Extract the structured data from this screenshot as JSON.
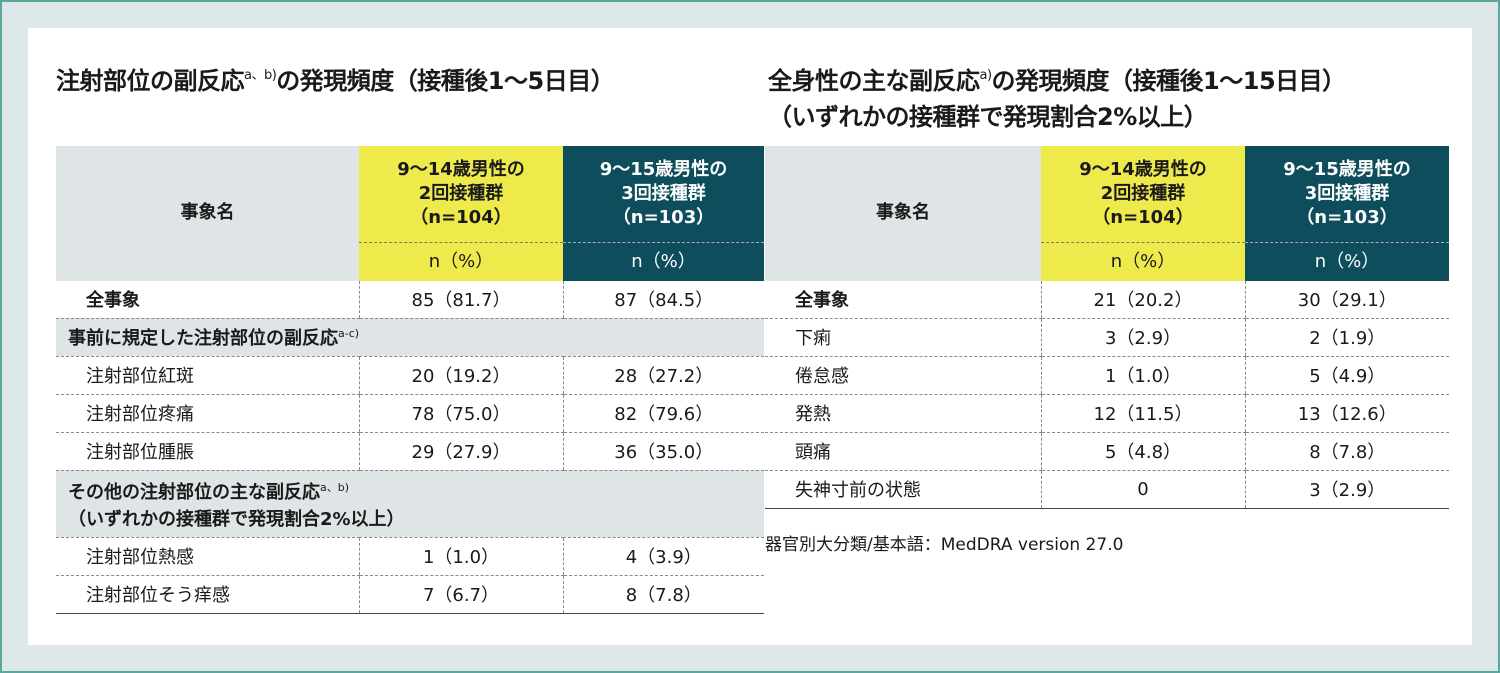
{
  "left": {
    "title": "注射部位の副反応",
    "title_sup": "a、b)",
    "title_rest": "の発現頻度（接種後1～5日目）",
    "header": {
      "event": "事象名",
      "col1": [
        "9～14歳男性の",
        "2回接種群",
        "（n=104）"
      ],
      "col2": [
        "9～15歳男性の",
        "3回接種群",
        "（n=103）"
      ],
      "unit1": "n（%）",
      "unit2": "n（%）"
    },
    "all": {
      "name": "全事象",
      "v1": "85（81.7）",
      "v2": "87（84.5）"
    },
    "section1": {
      "label": "事前に規定した注射部位の副反応",
      "sup": "a-c)"
    },
    "rows1": [
      {
        "name": "注射部位紅斑",
        "v1": "20（19.2）",
        "v2": "28（27.2）"
      },
      {
        "name": "注射部位疼痛",
        "v1": "78（75.0）",
        "v2": "82（79.6）"
      },
      {
        "name": "注射部位腫脹",
        "v1": "29（27.9）",
        "v2": "36（35.0）"
      }
    ],
    "section2": {
      "label": "その他の注射部位の主な副反応",
      "sup": "a、b)",
      "line2": "（いずれかの接種群で発現割合2%以上）"
    },
    "rows2": [
      {
        "name": "注射部位熱感",
        "v1": "1（1.0）",
        "v2": "4（3.9）"
      },
      {
        "name": "注射部位そう痒感",
        "v1": "7（6.7）",
        "v2": "8（7.8）"
      }
    ]
  },
  "right": {
    "title_l1": "全身性の主な副反応",
    "title_sup": "a)",
    "title_l1_rest": "の発現頻度（接種後1～15日目）",
    "title_l2": "（いずれかの接種群で発現割合2%以上）",
    "header": {
      "event": "事象名",
      "col1": [
        "9～14歳男性の",
        "2回接種群",
        "（n=104）"
      ],
      "col2": [
        "9～15歳男性の",
        "3回接種群",
        "（n=103）"
      ],
      "unit1": "n（%）",
      "unit2": "n（%）"
    },
    "rows": [
      {
        "name": "全事象",
        "v1": "21（20.2）",
        "v2": "30（29.1）"
      },
      {
        "name": "下痢",
        "v1": "3（2.9）",
        "v2": "2（1.9）"
      },
      {
        "name": "倦怠感",
        "v1": "1（1.0）",
        "v2": "5（4.9）"
      },
      {
        "name": "発熱",
        "v1": "12（11.5）",
        "v2": "13（12.6）"
      },
      {
        "name": "頭痛",
        "v1": "5（4.8）",
        "v2": "8（7.8）"
      },
      {
        "name": "失神寸前の状態",
        "v1": "0",
        "v2": "3（2.9）"
      }
    ],
    "footnote": "器官別大分類/基本語：MedDRA version 27.0"
  },
  "colors": {
    "yellow_header": "#eeea4c",
    "teal_header": "#0e4d5c",
    "section_bg": "#dfe5e6",
    "frame_border": "#5aa7a0"
  }
}
